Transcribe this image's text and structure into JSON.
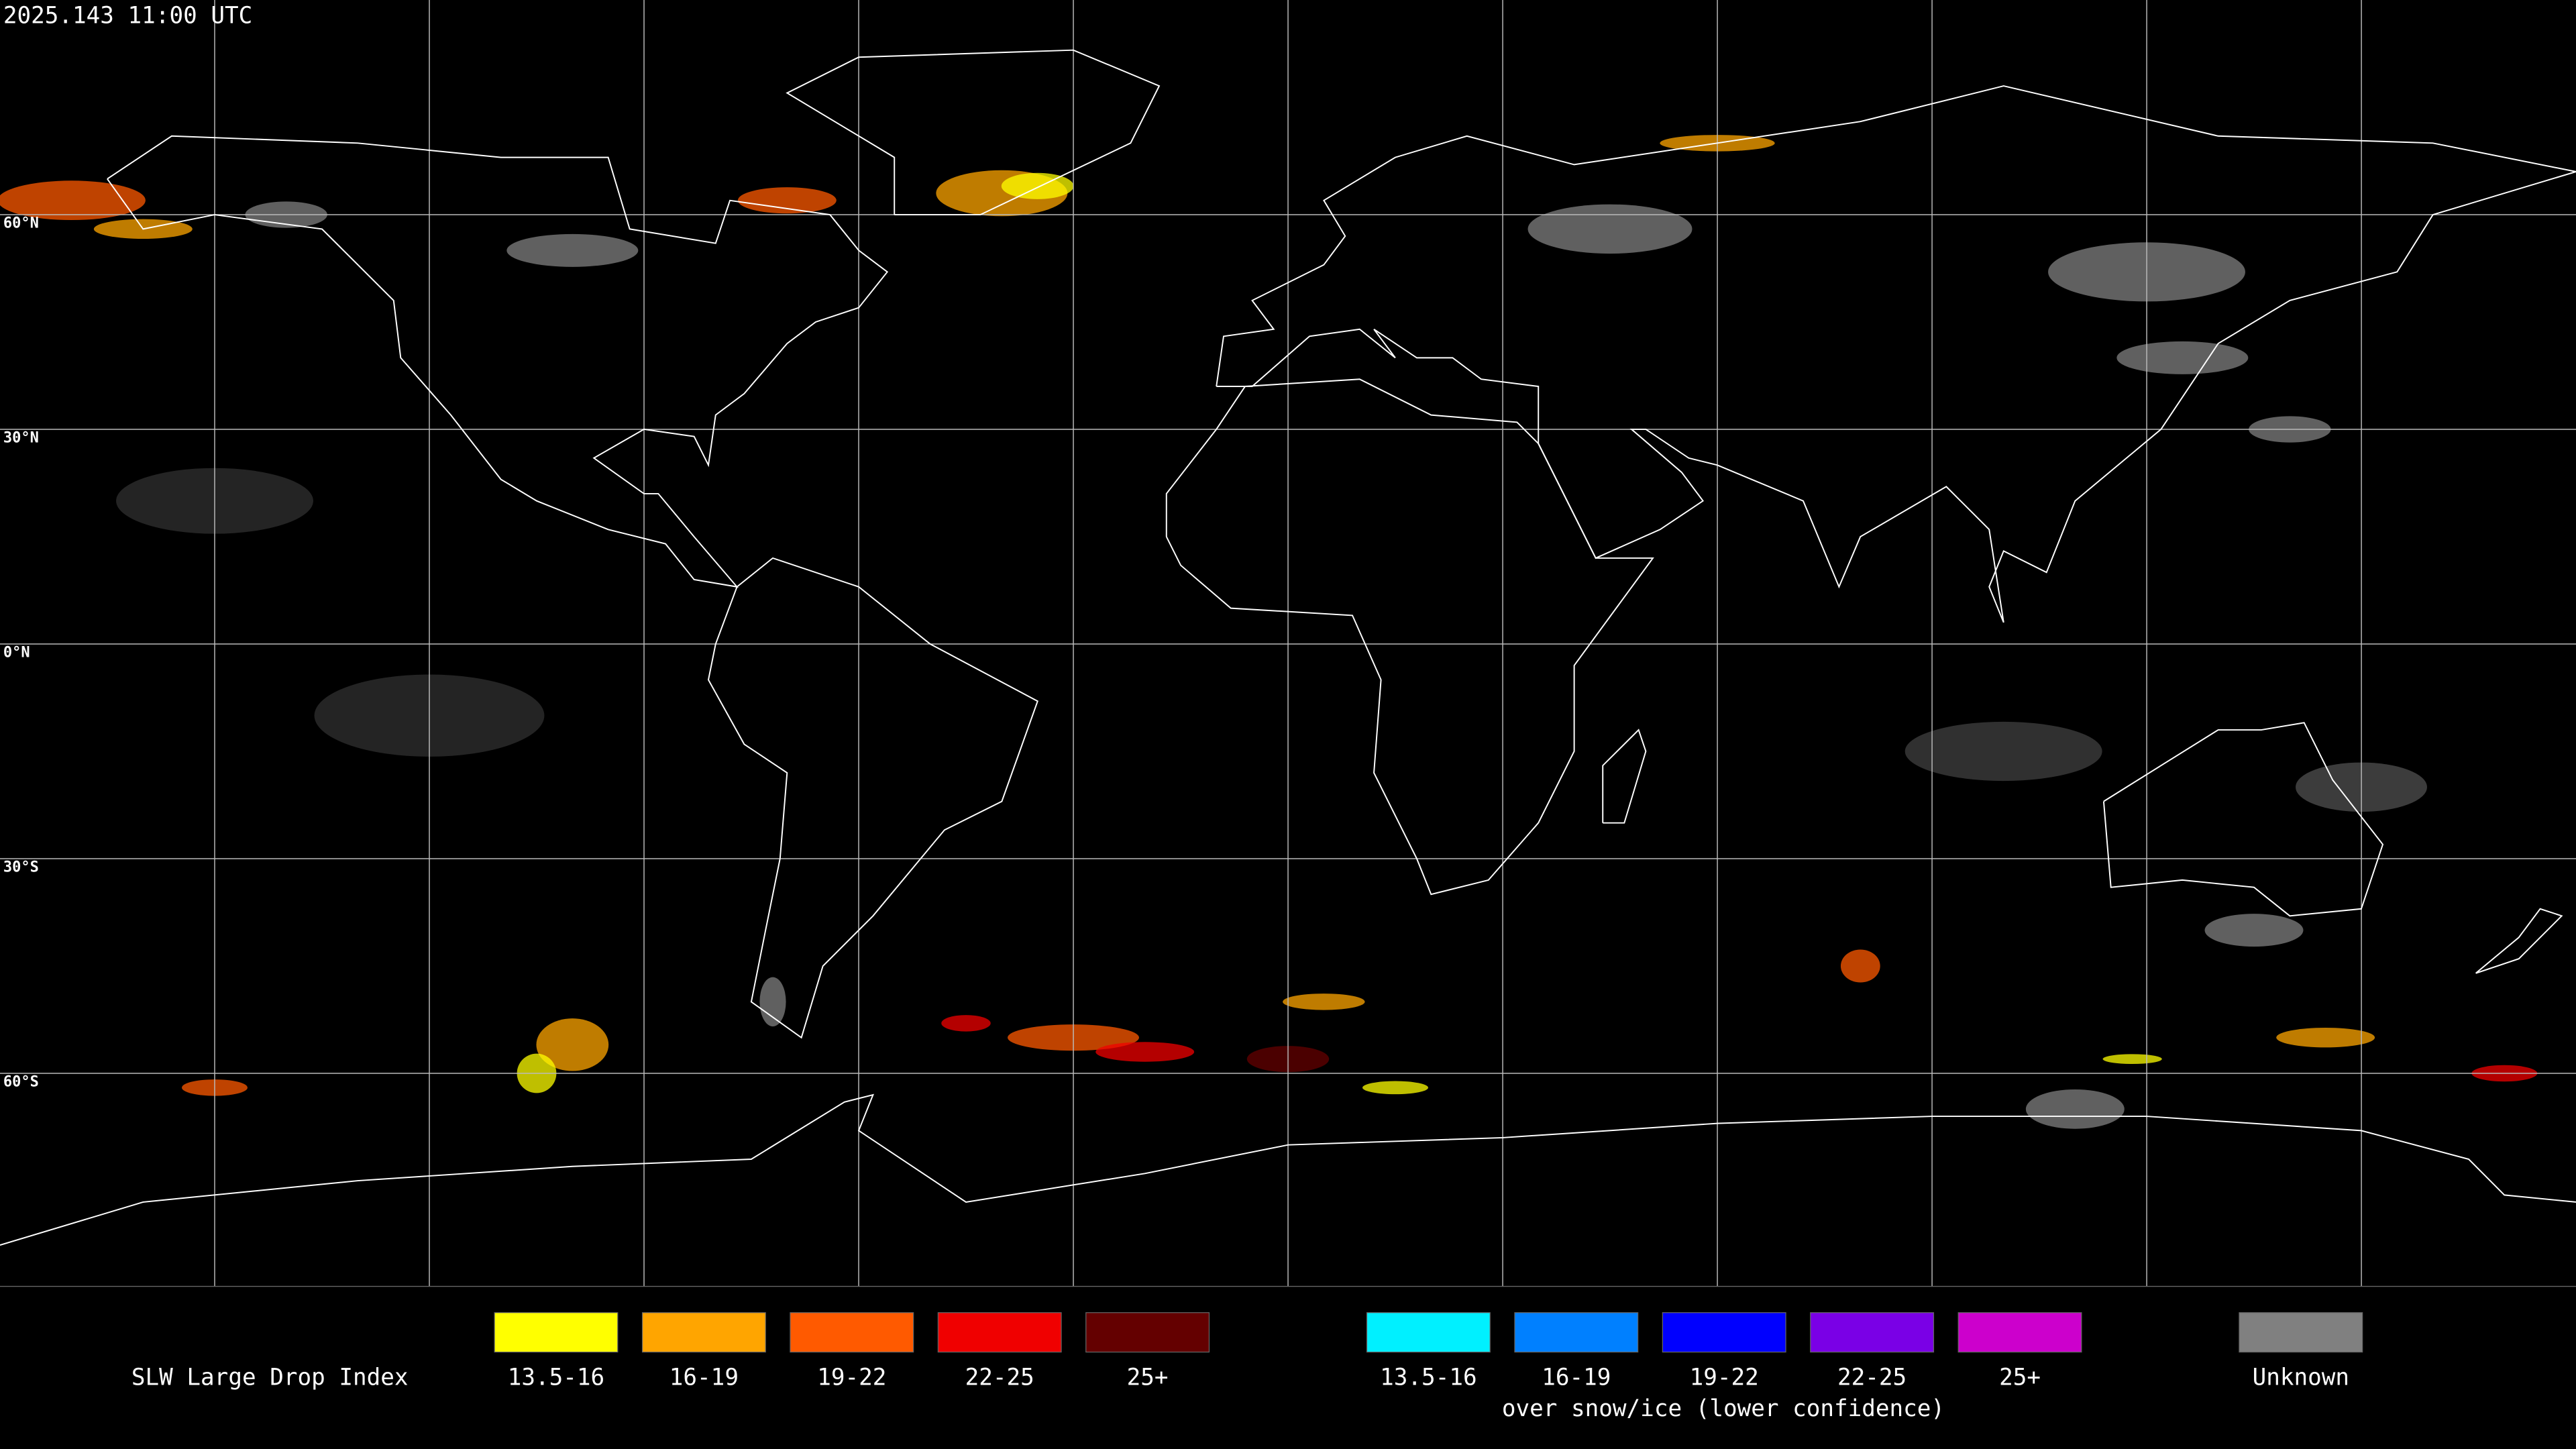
{
  "timestamp": "2025.143 11:00 UTC",
  "latitude_labels": [
    "60°N",
    "30°N",
    "0°N",
    "30°S",
    "60°S"
  ],
  "legend": {
    "title": "SLW Large Drop Index",
    "groups": [
      {
        "items": [
          {
            "label": "13.5-16",
            "color": "#ffff00"
          },
          {
            "label": "16-19",
            "color": "#ffa500"
          },
          {
            "label": "19-22",
            "color": "#ff5a00"
          },
          {
            "label": "22-25",
            "color": "#f00000"
          },
          {
            "label": "25+",
            "color": "#640000"
          }
        ]
      },
      {
        "items": [
          {
            "label": "13.5-16",
            "color": "#00f0ff"
          },
          {
            "label": "16-19",
            "color": "#0080ff"
          },
          {
            "label": "19-22",
            "color": "#0000ff"
          },
          {
            "label": "22-25",
            "color": "#7a00e6"
          },
          {
            "label": "25+",
            "color": "#cc00cc"
          }
        ],
        "caption": "over snow/ice (lower confidence)"
      }
    ],
    "unknown": {
      "label": "Unknown",
      "color": "#808080"
    }
  }
}
